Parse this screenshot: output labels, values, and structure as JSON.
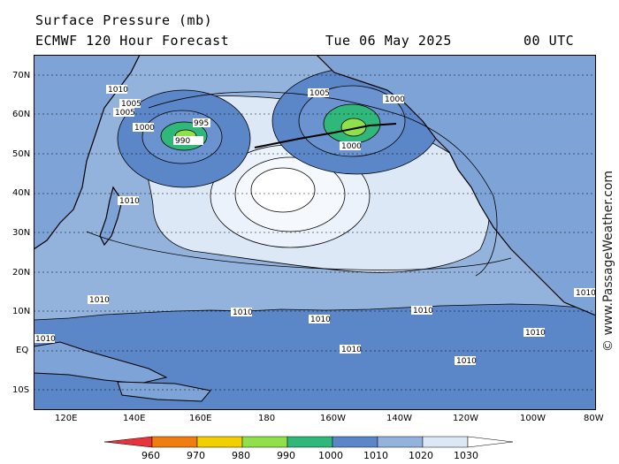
{
  "header": {
    "title_line1": "Surface Pressure (mb)",
    "title_line2": "ECMWF 120 Hour Forecast",
    "valid_date": "Tue 06 May 2025",
    "valid_time": "00 UTC"
  },
  "credit": "© www.PassageWeather.com",
  "lat_labels": [
    "70N",
    "60N",
    "50N",
    "40N",
    "30N",
    "20N",
    "10N",
    "EQ",
    "10S"
  ],
  "lon_labels": [
    "120E",
    "140E",
    "160E",
    "180",
    "160W",
    "140W",
    "120W",
    "100W",
    "80W"
  ],
  "legend": {
    "values": [
      "960",
      "970",
      "980",
      "990",
      "1000",
      "1010",
      "1020",
      "1030"
    ],
    "colors": [
      "#e8323c",
      "#f07d10",
      "#f2d000",
      "#8fe04a",
      "#2fb87a",
      "#5b86c8",
      "#93b3dc",
      "#dde8f6",
      "#ffffff"
    ]
  },
  "isobar_labels": [
    "1010",
    "1005",
    "1000",
    "995",
    "990",
    "1005",
    "1000",
    "1010",
    "1010",
    "1010",
    "1010",
    "1010",
    "1010",
    "1010",
    "1010",
    "1010",
    "1005",
    "1000",
    "1010"
  ],
  "colors": {
    "ocean_1010": "#5b86c8",
    "band_1010_1020": "#93b3dc",
    "band_1020_1030": "#dde8f6",
    "high_center": "#ffffff",
    "low_green": "#2fb87a",
    "low_light": "#8fe04a"
  }
}
